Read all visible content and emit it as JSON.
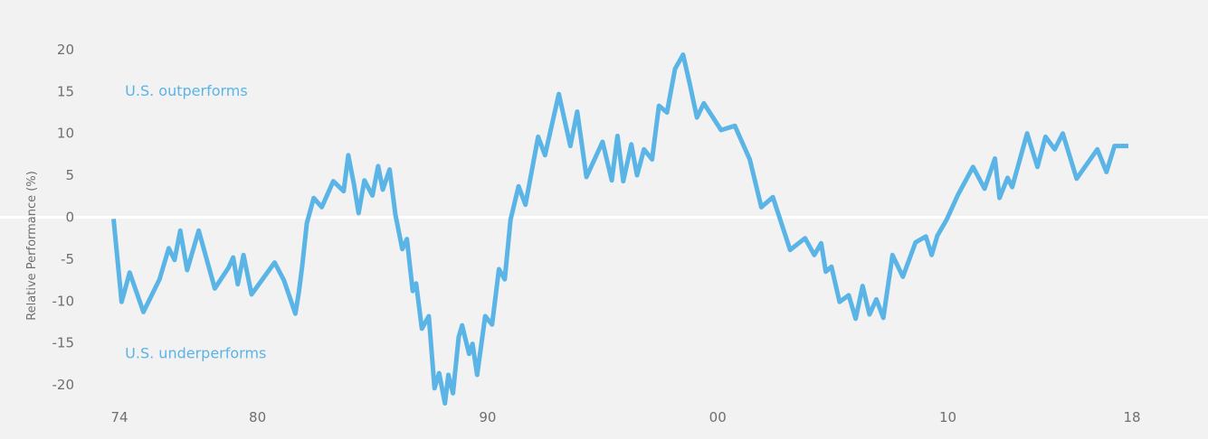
{
  "chart_data": {
    "type": "line",
    "ylabel": "Relative Performance (%)",
    "xlim": [
      1974,
      2020.5
    ],
    "ylim": [
      -23,
      22.5
    ],
    "x_ticks": [
      {
        "value": 1974,
        "label": "74"
      },
      {
        "value": 1980,
        "label": "80"
      },
      {
        "value": 1990,
        "label": "90"
      },
      {
        "value": 2000,
        "label": "00"
      },
      {
        "value": 2010,
        "label": "10"
      },
      {
        "value": 2018,
        "label": "18"
      }
    ],
    "y_ticks": [
      {
        "value": 20,
        "label": "20"
      },
      {
        "value": 15,
        "label": "15"
      },
      {
        "value": 10,
        "label": "10"
      },
      {
        "value": 5,
        "label": "5"
      },
      {
        "value": 0,
        "label": "0"
      },
      {
        "value": -5,
        "label": "-5"
      },
      {
        "value": -10,
        "label": "-10"
      },
      {
        "value": -15,
        "label": "-15"
      },
      {
        "value": -20,
        "label": "-20"
      }
    ],
    "annotations": [
      {
        "text": "U.S. outperforms",
        "x": 1974.4,
        "y": 14.5
      },
      {
        "text": "U.S. underperforms",
        "x": 1974.4,
        "y": -16.8
      }
    ],
    "zero_line": true,
    "grid": false,
    "series": [
      {
        "color": "#5ab4e5",
        "x": [
          1973.9,
          1974.25,
          1974.6,
          1975.2,
          1975.9,
          1976.3,
          1976.55,
          1976.8,
          1977.1,
          1977.6,
          1978.3,
          1978.9,
          1979.1,
          1979.3,
          1979.55,
          1979.9,
          1980.9,
          1981.3,
          1981.8,
          1981.95,
          1982.1,
          1982.3,
          1982.6,
          1982.95,
          1983.45,
          1983.9,
          1984.1,
          1984.35,
          1984.55,
          1984.8,
          1985.15,
          1985.4,
          1985.6,
          1985.9,
          1986.15,
          1986.45,
          1986.65,
          1986.9,
          1987.05,
          1987.3,
          1987.6,
          1987.85,
          1988.05,
          1988.3,
          1988.45,
          1988.65,
          1988.9,
          1989.05,
          1989.35,
          1989.5,
          1989.7,
          1990.05,
          1990.35,
          1990.65,
          1990.9,
          1991.15,
          1991.5,
          1991.8,
          1992.35,
          1992.65,
          1993.25,
          1993.75,
          1994.05,
          1994.45,
          1995.15,
          1995.55,
          1995.8,
          1996.05,
          1996.4,
          1996.65,
          1996.95,
          1997.3,
          1997.6,
          1997.95,
          1998.3,
          1998.65,
          1998.95,
          1999.25,
          1999.55,
          2000.3,
          2000.9,
          2001.55,
          2002.05,
          2002.55,
          2003.3,
          2003.95,
          2004.35,
          2004.65,
          2004.85,
          2005.1,
          2005.45,
          2005.85,
          2006.15,
          2006.45,
          2006.75,
          2007.05,
          2007.35,
          2007.75,
          2008.2,
          2008.75,
          2009.2,
          2009.45,
          2009.7,
          2010.1,
          2010.6,
          2011.25,
          2011.75,
          2012.2,
          2012.4,
          2012.75,
          2012.95,
          2013.6,
          2014.05,
          2014.4,
          2014.8,
          2015.15,
          2015.75,
          2016.65,
          2017.05,
          2017.4,
          2017.85,
          2018.0
        ],
        "y": [
          -0.2,
          -10.1,
          -6.6,
          -11.3,
          -7.4,
          -3.7,
          -5.1,
          -1.6,
          -6.3,
          -1.6,
          -8.5,
          -6.0,
          -4.8,
          -8.0,
          -4.5,
          -9.2,
          -5.4,
          -7.5,
          -11.5,
          -9.0,
          -5.8,
          -0.7,
          2.3,
          1.2,
          4.3,
          3.1,
          7.4,
          3.9,
          0.5,
          4.4,
          2.6,
          6.1,
          3.3,
          5.7,
          0.3,
          -3.8,
          -2.6,
          -8.8,
          -7.9,
          -13.3,
          -11.8,
          -20.4,
          -18.6,
          -22.2,
          -18.8,
          -21.0,
          -14.3,
          -12.9,
          -16.3,
          -15.1,
          -18.8,
          -11.8,
          -12.8,
          -6.2,
          -7.4,
          -0.3,
          3.7,
          1.5,
          9.6,
          7.4,
          14.7,
          8.5,
          12.6,
          4.8,
          9.0,
          4.4,
          9.7,
          4.3,
          8.7,
          5.0,
          8.1,
          6.9,
          13.3,
          12.5,
          17.7,
          19.4,
          15.8,
          11.9,
          13.6,
          10.4,
          10.9,
          6.9,
          1.2,
          2.4,
          -3.9,
          -2.5,
          -4.5,
          -3.1,
          -6.5,
          -5.9,
          -10.1,
          -9.3,
          -12.1,
          -8.2,
          -11.6,
          -9.8,
          -12.0,
          -4.5,
          -7.1,
          -3.0,
          -2.3,
          -4.5,
          -2.2,
          -0.3,
          2.7,
          6.0,
          3.4,
          7.0,
          2.3,
          4.7,
          3.6,
          10.0,
          6.0,
          9.6,
          8.1,
          10.0,
          4.6,
          8.1,
          5.4,
          8.5,
          8.5,
          8.5
        ]
      }
    ]
  }
}
